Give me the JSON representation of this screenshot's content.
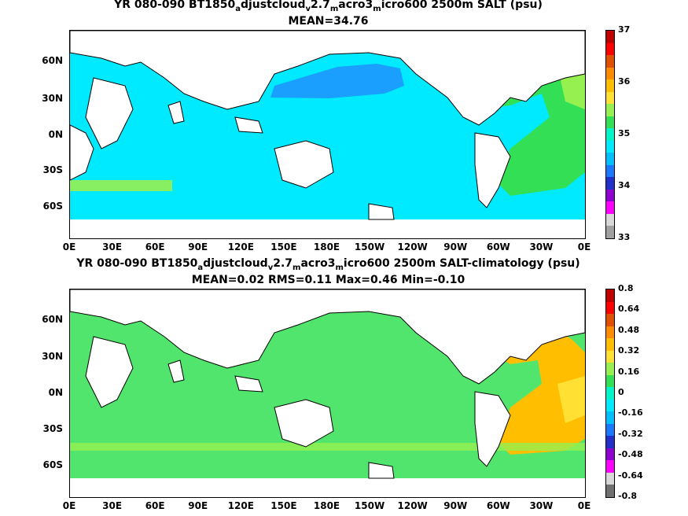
{
  "top": {
    "title_line1": "YR 080-090 BT1850_adjustcloud_v2.7_macro3_micro600 2500m SALT (psu)",
    "title_parts": [
      "YR 080-090 BT1850",
      "a",
      "djustcloud",
      "v",
      "2.7",
      "m",
      "acro3",
      "m",
      "icro600 2500m SALT (psu)"
    ],
    "title_line2": "MEAN=34.76",
    "colorbar_labels": [
      "37",
      "36",
      "35",
      "34",
      "33"
    ],
    "colorbar_colors": [
      "#a0a0a0",
      "#d8d8d8",
      "#ff00ff",
      "#9000d0",
      "#2030c8",
      "#1a78ff",
      "#00bfff",
      "#00eaff",
      "#00f5c8",
      "#33e055",
      "#96f050",
      "#ffe033",
      "#ffbf00",
      "#ff8c00",
      "#e05000",
      "#ff0000",
      "#c00000"
    ]
  },
  "bottom": {
    "title_parts": [
      "YR 080-090 BT1850",
      "a",
      "djustcloud",
      "v",
      "2.7",
      "m",
      "acro3",
      "m",
      "icro600 2500m SALT-climatology (psu)"
    ],
    "title_line2": "MEAN=0.02   RMS=0.11   Max=0.46   Min=-0.10",
    "colorbar_labels": [
      "0.8",
      "0.64",
      "0.48",
      "0.32",
      "0.16",
      "0",
      "-0.16",
      "-0.32",
      "-0.48",
      "-0.64",
      "-0.8"
    ],
    "colorbar_colors": [
      "#707070",
      "#d8d8d8",
      "#ff00ff",
      "#9000d0",
      "#2030c8",
      "#1a78ff",
      "#00bfff",
      "#00eaff",
      "#00f5c8",
      "#33e055",
      "#96f050",
      "#ffe033",
      "#ffbf00",
      "#ff8c00",
      "#e05000",
      "#ff0000",
      "#c00000"
    ]
  },
  "axes": {
    "x_ticks": [
      "0E",
      "30E",
      "60E",
      "90E",
      "120E",
      "150E",
      "180E",
      "150W",
      "120W",
      "90W",
      "60W",
      "30W",
      "0E"
    ],
    "y_ticks": [
      "60N",
      "30N",
      "0N",
      "30S",
      "60S"
    ]
  }
}
